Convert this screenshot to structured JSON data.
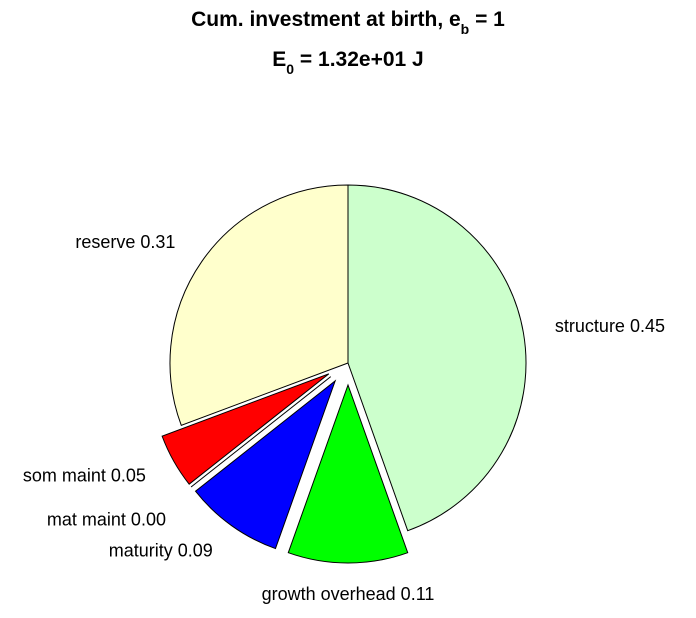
{
  "title": {
    "line1_prefix": "Cum. investment at birth, e",
    "line1_sub": "b",
    "line1_suffix": " = 1",
    "line2_prefix": "E",
    "line2_sub": "0",
    "line2_suffix": " = 1.32e+01 J"
  },
  "chart_data": {
    "type": "pie",
    "title": "Cum. investment at birth, e_b = 1 / E_0 = 1.32e+01 J",
    "start": "top, clockwise",
    "slices": [
      {
        "name": "structure",
        "value": 0.45,
        "label": "structure 0.45",
        "color": "#ccffcc",
        "exploded": false
      },
      {
        "name": "growth overhead",
        "value": 0.11,
        "label": "growth overhead 0.11",
        "color": "#00ff00",
        "exploded": true
      },
      {
        "name": "maturity",
        "value": 0.09,
        "label": "maturity 0.09",
        "color": "#0000ff",
        "exploded": true
      },
      {
        "name": "mat maint",
        "value": 0.0,
        "label": "mat maint 0.00",
        "color": "#000000",
        "exploded": true
      },
      {
        "name": "som maint",
        "value": 0.05,
        "label": "som maint 0.05",
        "color": "#ff0000",
        "exploded": true
      },
      {
        "name": "reserve",
        "value": 0.31,
        "label": "reserve 0.31",
        "color": "#ffffcc",
        "exploded": false
      }
    ]
  }
}
